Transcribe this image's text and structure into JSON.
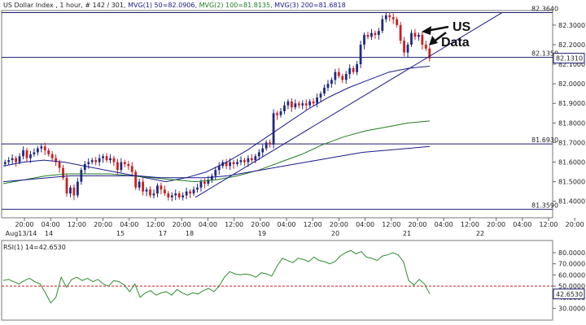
{
  "header": {
    "symbol_text": "US Dollar Index , 1 hour, # 142 / 301,",
    "mvg1_text": "MVG(1) 50=82.0906,",
    "mvg2_text": "MVG(2) 100=81.8135,",
    "mvg3_text": "MVG(3) 200=81.6818",
    "mvg1_color": "#1a1a8c",
    "mvg2_color": "#1f7a1f",
    "mvg3_color": "#1a1a8c"
  },
  "colors": {
    "up_candle": "#1f2a80",
    "down_candle": "#cc1f1f",
    "hline": "#1a1a6e",
    "trendline": "#1a1a8c",
    "rsi_line": "#2e8b2e",
    "rsi_ref": "#cc1f1f",
    "frame": "#666666"
  },
  "annotation": {
    "line1": "US",
    "line2": "Data"
  },
  "chart_data": [
    {
      "type": "candlestick",
      "title": "US Dollar Index , 1 hour",
      "ylim": [
        81.32,
        82.37
      ],
      "y_ticks": [
        "82.3000",
        "82.2000",
        "82.1000",
        "82.0000",
        "81.9000",
        "81.8000",
        "81.7000",
        "81.6000",
        "81.5000",
        "81.4000"
      ],
      "x_tick_labels": [
        "20:00",
        "04:00",
        "12:00",
        "20:00",
        "04:00",
        "12:00",
        "20:00",
        "04:00",
        "12:00",
        "20:00",
        "04:00",
        "12:00",
        "20:00",
        "04:00",
        "12:00",
        "20:00",
        "04:00",
        "12:00",
        "20:00",
        "04:00",
        "12:00",
        "20:00"
      ],
      "date_labels": [
        "Aug13/14",
        "14",
        "15",
        "17",
        "18",
        "19",
        "20",
        "21",
        "22"
      ],
      "horizontal_levels": [
        {
          "label": "82.3640",
          "value": 82.364
        },
        {
          "label": "82.1350",
          "value": 82.135
        },
        {
          "label": "81.6930",
          "value": 81.693
        },
        {
          "label": "81.3590",
          "value": 81.359
        }
      ],
      "last_price_label": "82.1310",
      "last_price": 82.131,
      "trendline": {
        "start": 81.42,
        "end": 82.364
      },
      "candles_close": [
        81.6,
        81.61,
        81.62,
        81.6,
        81.63,
        81.66,
        81.62,
        81.64,
        81.65,
        81.67,
        81.68,
        81.66,
        81.64,
        81.62,
        81.6,
        81.57,
        81.52,
        81.44,
        81.47,
        81.43,
        81.5,
        81.56,
        81.59,
        81.6,
        81.61,
        81.6,
        81.62,
        81.63,
        81.61,
        81.62,
        81.6,
        81.56,
        81.6,
        81.59,
        81.58,
        81.55,
        81.47,
        81.5,
        81.45,
        81.46,
        81.43,
        81.44,
        81.48,
        81.46,
        81.44,
        81.42,
        81.43,
        81.44,
        81.42,
        81.43,
        81.45,
        81.44,
        81.46,
        81.47,
        81.5,
        81.49,
        81.51,
        81.53,
        81.56,
        81.58,
        81.6,
        81.58,
        81.6,
        81.59,
        81.6,
        81.61,
        81.6,
        81.62,
        81.61,
        81.63,
        81.65,
        81.67,
        81.7,
        81.69,
        81.85,
        81.84,
        81.86,
        81.89,
        81.91,
        81.88,
        81.9,
        81.89,
        81.9,
        81.89,
        81.91,
        81.9,
        81.93,
        81.95,
        81.98,
        82.0,
        82.02,
        82.06,
        82.04,
        82.02,
        82.05,
        82.08,
        82.06,
        82.1,
        82.2,
        82.25,
        82.24,
        82.26,
        82.25,
        82.27,
        82.33,
        82.35,
        82.34,
        82.33,
        82.3,
        82.22,
        82.16,
        82.2,
        82.26,
        82.24,
        82.25,
        82.2,
        82.18,
        82.13
      ],
      "ma50": [
        81.58,
        81.6,
        81.61,
        81.6,
        81.58,
        81.56,
        81.54,
        81.52,
        81.5,
        81.52,
        81.55,
        81.6,
        81.66,
        81.73,
        81.8,
        81.87,
        81.93,
        81.98,
        82.02,
        82.06,
        82.08,
        82.09
      ],
      "ma100": [
        81.49,
        81.51,
        81.53,
        81.54,
        81.54,
        81.54,
        81.53,
        81.52,
        81.51,
        81.5,
        81.51,
        81.53,
        81.56,
        81.6,
        81.64,
        81.69,
        81.73,
        81.76,
        81.78,
        81.8,
        81.81
      ],
      "ma200": [
        81.5,
        81.51,
        81.52,
        81.53,
        81.53,
        81.53,
        81.53,
        81.52,
        81.52,
        81.52,
        81.53,
        81.55,
        81.57,
        81.59,
        81.61,
        81.63,
        81.65,
        81.66,
        81.67,
        81.68
      ]
    },
    {
      "type": "line",
      "title": "RSI(1) 14=42.6530",
      "ylim": [
        21,
        88
      ],
      "y_ticks": [
        "80.0000",
        "70.0000",
        "60.0000",
        "50.0000",
        "40.0000",
        "30.0000"
      ],
      "reference_level": 50,
      "last_value_label": "42.6530",
      "series": [
        {
          "name": "RSI(1) 14",
          "values": [
            55,
            56,
            54,
            52,
            55,
            57,
            54,
            52,
            44,
            35,
            40,
            58,
            49,
            56,
            58,
            55,
            57,
            54,
            56,
            52,
            50,
            55,
            54,
            51,
            45,
            52,
            40,
            44,
            46,
            42,
            44,
            45,
            42,
            47,
            44,
            42,
            44,
            43,
            46,
            48,
            45,
            50,
            58,
            63,
            61,
            60,
            61,
            60,
            58,
            62,
            61,
            59,
            68,
            75,
            73,
            71,
            75,
            74,
            72,
            76,
            73,
            72,
            70,
            72,
            77,
            80,
            82,
            79,
            81,
            76,
            75,
            73,
            77,
            78,
            80,
            78,
            72,
            55,
            51,
            56,
            52,
            43
          ]
        }
      ]
    }
  ]
}
